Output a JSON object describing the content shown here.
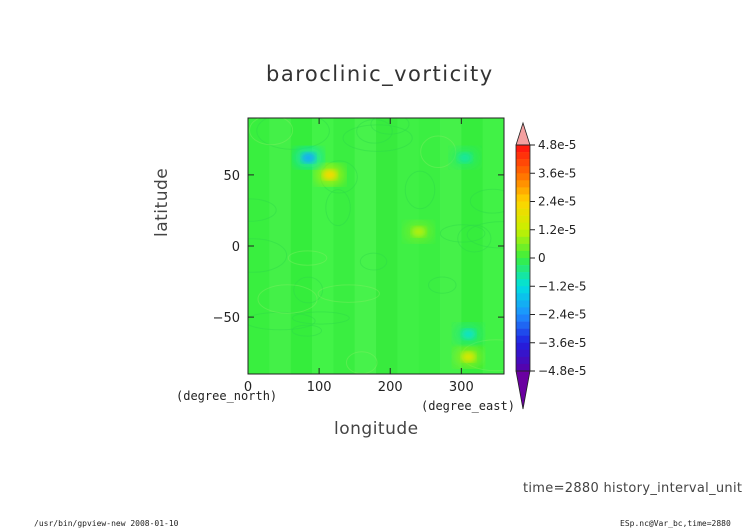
{
  "chart_data": {
    "type": "heatmap",
    "title": "baroclinic_vorticity",
    "xlabel": "longitude",
    "ylabel": "latitude",
    "x_unit": "(degree_east)",
    "y_unit": "(degree_north)",
    "xlim": [
      0,
      360
    ],
    "ylim": [
      -90,
      90
    ],
    "x_ticks": [
      0,
      100,
      200,
      300
    ],
    "y_ticks": [
      50,
      0,
      -50
    ],
    "colorbar": {
      "tick_labels": [
        "4.8e-5",
        "3.6e-5",
        "2.4e-5",
        "1.2e-5",
        "0",
        "−1.2e-5",
        "−2.4e-5",
        "−3.6e-5",
        "−4.8e-5"
      ],
      "tick_values": [
        4.8e-05,
        3.6e-05,
        2.4e-05,
        1.2e-05,
        0,
        -1.2e-05,
        -2.4e-05,
        -3.6e-05,
        -4.8e-05
      ],
      "range": [
        -4.8e-05,
        4.8e-05
      ],
      "extend": "both"
    },
    "features": [
      {
        "lon": 115,
        "lat": 50,
        "value": 2.2e-05
      },
      {
        "lon": 85,
        "lat": 62,
        "value": -2e-05
      },
      {
        "lon": 310,
        "lat": -78,
        "value": 1.6e-05
      },
      {
        "lon": 310,
        "lat": -62,
        "value": -1e-05
      },
      {
        "lon": 240,
        "lat": 10,
        "value": 1e-05
      },
      {
        "lon": 305,
        "lat": 62,
        "value": -7e-06
      }
    ]
  },
  "annotations": {
    "time": "time=2880",
    "units": "history_interval_unit"
  },
  "footer": {
    "program": "/usr/bin/gpview-new  2008-01-10",
    "source": "ESp.nc@Var_bc,time=2880"
  }
}
